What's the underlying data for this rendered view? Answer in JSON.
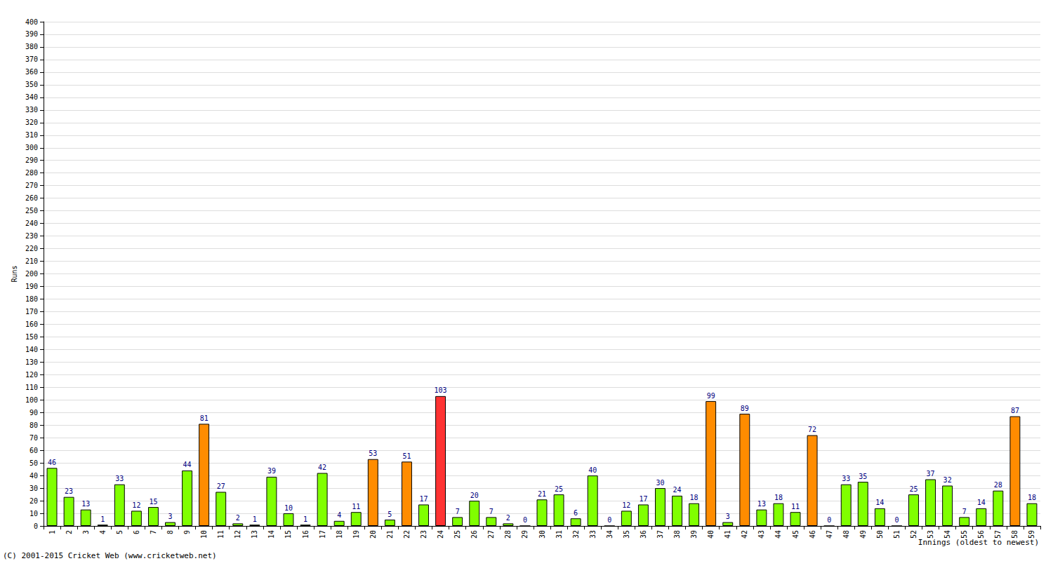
{
  "chart_data": {
    "type": "bar",
    "y_label": "Runs",
    "x_label": "Innings (oldest to newest)",
    "annotations": [
      "(C) 2001-2015 Cricket Web (www.cricketweb.net)"
    ],
    "categories": [
      "1",
      "2",
      "3",
      "4",
      "5",
      "6",
      "7",
      "8",
      "9",
      "10",
      "11",
      "12",
      "13",
      "14",
      "15",
      "16",
      "17",
      "18",
      "19",
      "20",
      "21",
      "22",
      "23",
      "24",
      "25",
      "26",
      "27",
      "28",
      "29",
      "30",
      "31",
      "32",
      "33",
      "34",
      "35",
      "36",
      "37",
      "38",
      "39",
      "40",
      "41",
      "42",
      "43",
      "44",
      "45",
      "46",
      "47",
      "48",
      "49",
      "50",
      "51",
      "52",
      "53",
      "54",
      "55",
      "56",
      "57",
      "58",
      "59"
    ],
    "values": [
      46,
      23,
      13,
      1,
      33,
      12,
      15,
      3,
      44,
      81,
      27,
      2,
      1,
      39,
      10,
      1,
      42,
      4,
      11,
      53,
      5,
      51,
      17,
      103,
      7,
      20,
      7,
      2,
      0,
      21,
      25,
      6,
      40,
      0,
      12,
      17,
      30,
      24,
      18,
      99,
      3,
      89,
      13,
      18,
      11,
      72,
      0,
      33,
      35,
      14,
      0,
      25,
      37,
      32,
      7,
      14,
      28,
      87,
      18
    ],
    "colors": [
      "#80ff00",
      "#80ff00",
      "#80ff00",
      "#80ff00",
      "#80ff00",
      "#80ff00",
      "#80ff00",
      "#80ff00",
      "#80ff00",
      "#ff8c00",
      "#80ff00",
      "#80ff00",
      "#80ff00",
      "#80ff00",
      "#80ff00",
      "#80ff00",
      "#80ff00",
      "#80ff00",
      "#80ff00",
      "#ff8c00",
      "#80ff00",
      "#ff8c00",
      "#80ff00",
      "#ff3333",
      "#80ff00",
      "#80ff00",
      "#80ff00",
      "#80ff00",
      "#80ff00",
      "#80ff00",
      "#80ff00",
      "#80ff00",
      "#80ff00",
      "#80ff00",
      "#80ff00",
      "#80ff00",
      "#80ff00",
      "#80ff00",
      "#80ff00",
      "#ff8c00",
      "#80ff00",
      "#ff8c00",
      "#80ff00",
      "#80ff00",
      "#80ff00",
      "#ff8c00",
      "#80ff00",
      "#80ff00",
      "#80ff00",
      "#80ff00",
      "#80ff00",
      "#80ff00",
      "#80ff00",
      "#80ff00",
      "#80ff00",
      "#80ff00",
      "#80ff00",
      "#ff8c00",
      "#80ff00"
    ],
    "ylim": [
      0,
      400
    ],
    "yticks": [
      0,
      10,
      20,
      30,
      40,
      50,
      60,
      70,
      80,
      90,
      100,
      110,
      120,
      130,
      140,
      150,
      160,
      170,
      180,
      190,
      200,
      210,
      220,
      230,
      240,
      250,
      260,
      270,
      280,
      290,
      300,
      310,
      320,
      330,
      340,
      350,
      360,
      370,
      380,
      390,
      400
    ],
    "grid": true,
    "data_labels": true
  }
}
